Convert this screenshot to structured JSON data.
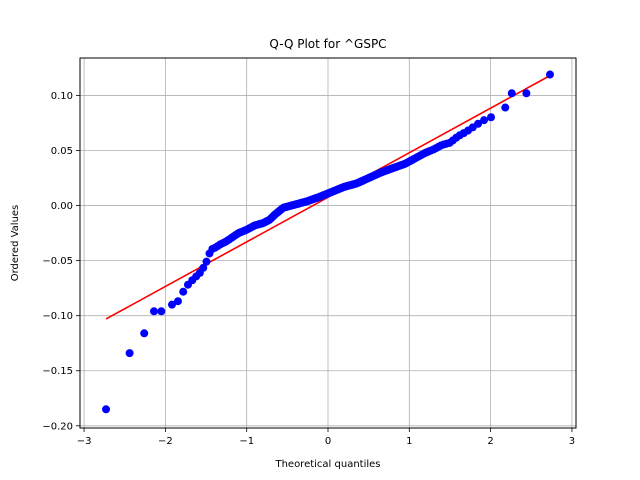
{
  "chart_data": {
    "type": "scatter",
    "title": "Q-Q Plot for ^GSPC",
    "xlabel": "Theoretical quantiles",
    "ylabel": "Ordered Values",
    "xlim": [
      -3.05,
      3.05
    ],
    "ylim": [
      -0.202,
      0.134
    ],
    "grid": true,
    "x_ticks": [
      -3,
      -2,
      -1,
      0,
      1,
      2,
      3
    ],
    "x_tick_labels": [
      "−3",
      "−2",
      "−1",
      "0",
      "1",
      "2",
      "3"
    ],
    "y_ticks": [
      -0.2,
      -0.15,
      -0.1,
      -0.05,
      0.0,
      0.05,
      0.1
    ],
    "y_tick_labels": [
      "−0.20",
      "−0.15",
      "−0.10",
      "−0.05",
      "0.00",
      "0.05",
      "0.10"
    ],
    "marker_color": "#0000ff",
    "line_color": "#ff0000",
    "fit_line": {
      "x": [
        -2.73,
        2.73
      ],
      "y": [
        -0.103,
        0.118
      ]
    },
    "anchors": [
      [
        -2.73,
        -0.185
      ],
      [
        -2.44,
        -0.134
      ],
      [
        -2.26,
        -0.116
      ],
      [
        -2.14,
        -0.096
      ],
      [
        -2.05,
        -0.096
      ],
      [
        -1.97,
        -0.09
      ],
      [
        -1.9,
        -0.09
      ],
      [
        -1.83,
        -0.086
      ],
      [
        -1.76,
        -0.075
      ],
      [
        -1.7,
        -0.07
      ],
      [
        -1.63,
        -0.065
      ],
      [
        -1.56,
        -0.06
      ],
      [
        -1.5,
        -0.052
      ],
      [
        -1.44,
        -0.04
      ],
      [
        -1.38,
        -0.038
      ],
      [
        -1.32,
        -0.035
      ],
      [
        -1.26,
        -0.033
      ],
      [
        -1.2,
        -0.03
      ],
      [
        -1.1,
        -0.025
      ],
      [
        -1.0,
        -0.022
      ],
      [
        -0.9,
        -0.018
      ],
      [
        -0.8,
        -0.016
      ],
      [
        -0.72,
        -0.013
      ],
      [
        -0.65,
        -0.008
      ],
      [
        -0.55,
        -0.002
      ],
      [
        -0.45,
        0.0
      ],
      [
        -0.35,
        0.002
      ],
      [
        -0.25,
        0.004
      ],
      [
        -0.1,
        0.008
      ],
      [
        0.0,
        0.011
      ],
      [
        0.1,
        0.014
      ],
      [
        0.2,
        0.017
      ],
      [
        0.35,
        0.02
      ],
      [
        0.5,
        0.025
      ],
      [
        0.65,
        0.03
      ],
      [
        0.8,
        0.034
      ],
      [
        0.95,
        0.038
      ],
      [
        1.1,
        0.044
      ],
      [
        1.2,
        0.048
      ],
      [
        1.3,
        0.051
      ],
      [
        1.4,
        0.055
      ],
      [
        1.5,
        0.057
      ],
      [
        1.55,
        0.06
      ],
      [
        1.6,
        0.063
      ],
      [
        1.7,
        0.067
      ],
      [
        1.8,
        0.072
      ],
      [
        1.9,
        0.077
      ],
      [
        2.0,
        0.08
      ],
      [
        2.05,
        0.082
      ],
      [
        2.1,
        0.084
      ],
      [
        2.18,
        0.089
      ],
      [
        2.26,
        0.102
      ],
      [
        2.44,
        0.102
      ],
      [
        2.73,
        0.119
      ]
    ],
    "point_count": 200,
    "extreme_points": [
      [
        -2.73,
        -0.185
      ],
      [
        -2.44,
        -0.134
      ],
      [
        -2.26,
        -0.116
      ],
      [
        -2.14,
        -0.096
      ],
      [
        -2.05,
        -0.096
      ],
      [
        2.18,
        0.089
      ],
      [
        2.26,
        0.102
      ],
      [
        2.44,
        0.102
      ],
      [
        2.73,
        0.119
      ]
    ]
  }
}
